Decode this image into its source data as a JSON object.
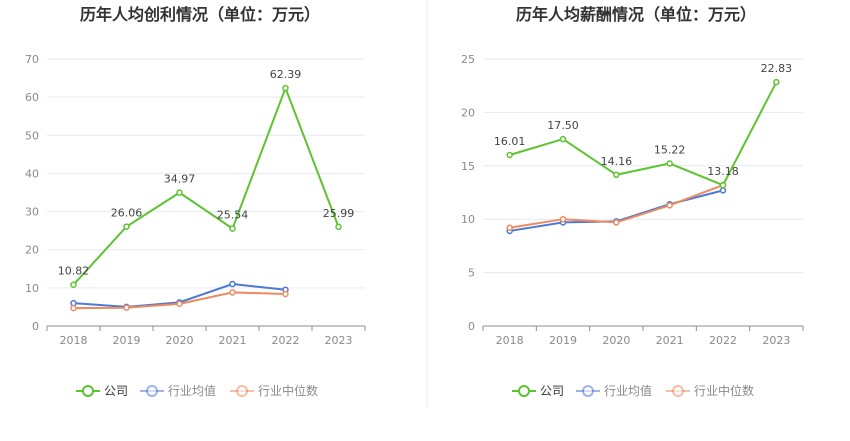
{
  "chart_data": [
    {
      "type": "line",
      "title": "历年人均创利情况（单位：万元）",
      "xlabel": "",
      "ylabel": "",
      "ylim": [
        0,
        70
      ],
      "yticks": [
        0,
        10,
        20,
        30,
        40,
        50,
        60,
        70
      ],
      "categories": [
        "2018",
        "2019",
        "2020",
        "2021",
        "2022",
        "2023"
      ],
      "series": [
        {
          "name": "公司",
          "color": "#5cc430",
          "values": [
            10.82,
            26.06,
            34.97,
            25.54,
            62.39,
            25.99
          ],
          "labels": [
            "10.82",
            "26.06",
            "34.97",
            "25.54",
            "62.39",
            "25.99"
          ]
        },
        {
          "name": "行业均值",
          "color": "#4d79d6",
          "values": [
            6.0,
            5.0,
            6.2,
            11.0,
            9.5,
            null
          ]
        },
        {
          "name": "行业中位数",
          "color": "#ee8a60",
          "values": [
            4.7,
            4.8,
            5.8,
            8.8,
            8.4,
            null
          ]
        }
      ]
    },
    {
      "type": "line",
      "title": "历年人均薪酬情况（单位：万元）",
      "xlabel": "",
      "ylabel": "",
      "ylim": [
        0,
        25
      ],
      "yticks": [
        0,
        5,
        10,
        15,
        20,
        25
      ],
      "categories": [
        "2018",
        "2019",
        "2020",
        "2021",
        "2022",
        "2023"
      ],
      "series": [
        {
          "name": "公司",
          "color": "#5cc430",
          "values": [
            16.01,
            17.5,
            14.16,
            15.22,
            13.18,
            22.83
          ],
          "labels": [
            "16.01",
            "17.50",
            "14.16",
            "15.22",
            "13.18",
            "22.83"
          ]
        },
        {
          "name": "行业均值",
          "color": "#4d79d6",
          "values": [
            8.9,
            9.7,
            9.8,
            11.4,
            12.7,
            null
          ]
        },
        {
          "name": "行业中位数",
          "color": "#ee8a60",
          "values": [
            9.2,
            10.0,
            9.7,
            11.3,
            13.2,
            null
          ]
        }
      ]
    }
  ]
}
